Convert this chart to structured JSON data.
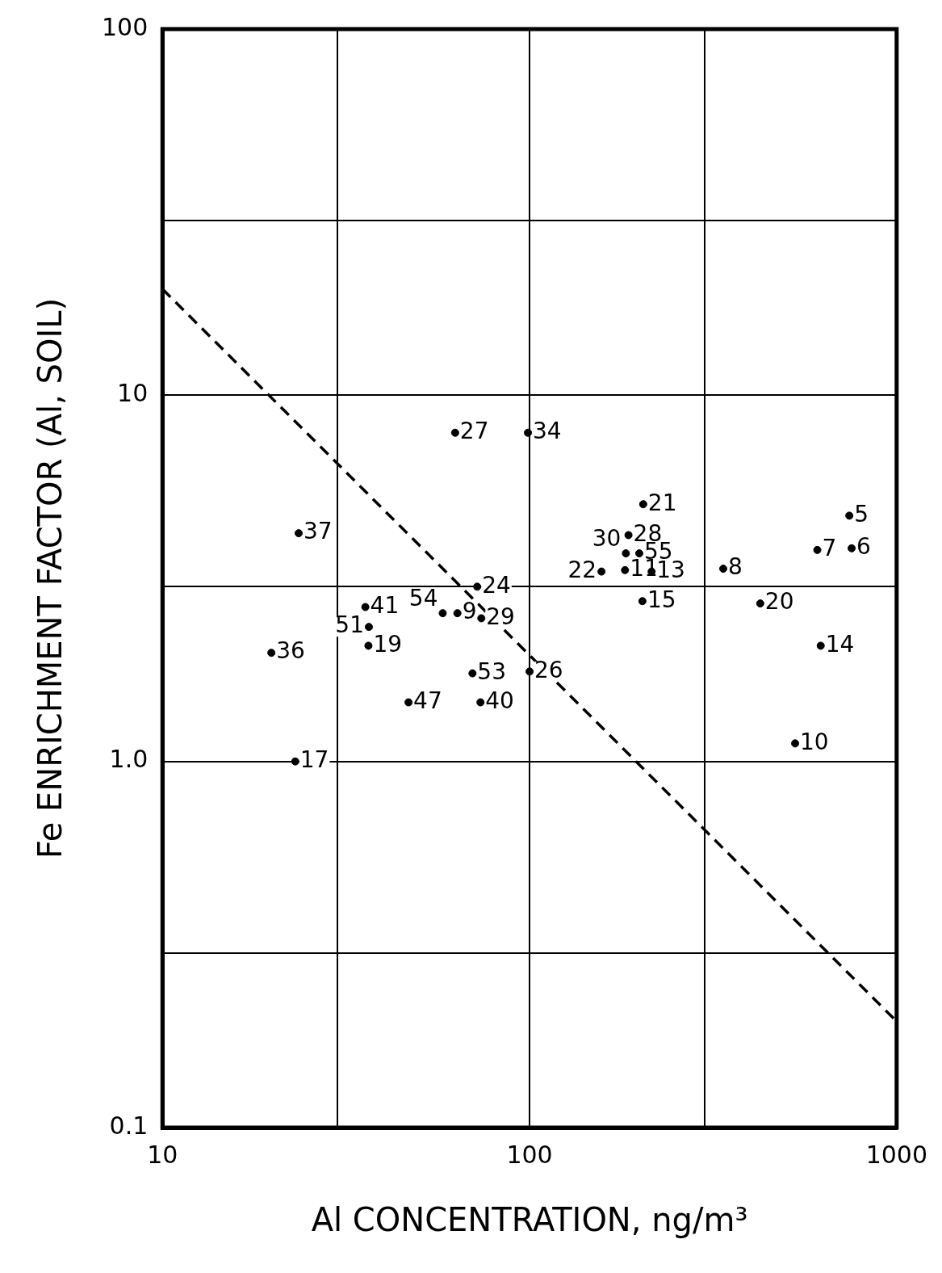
{
  "chart_data": {
    "type": "scatter",
    "xlabel": "Al CONCENTRATION, ng/m³",
    "ylabel": "Fe ENRICHMENT FACTOR (Al, SOIL)",
    "log": "xy",
    "grid": true,
    "legend": false,
    "marker": "circle",
    "xlim": [
      10,
      1000
    ],
    "ylim": [
      0.1,
      100
    ],
    "xticks": [
      10,
      {
        "value": 30,
        "label": null
      },
      100,
      {
        "value": 300,
        "label": null
      },
      1000
    ],
    "yticks": [
      {
        "value": 0.1,
        "label": "0.1"
      },
      {
        "value": 0.3,
        "label": null
      },
      {
        "value": 1,
        "label": "1.0"
      },
      {
        "value": 3,
        "label": null
      },
      10,
      {
        "value": 30,
        "label": null
      },
      100
    ],
    "series": [
      {
        "color": "#000000",
        "x": [
          62.7,
          99,
          23.5,
          19.8,
          23,
          35.7,
          36.5,
          36.4,
          46.8,
          58,
          63.6,
          72,
          73.9,
          69.9,
          73.5,
          100,
          186,
          204,
          183,
          199,
          157,
          182,
          215,
          203,
          337,
          425,
          743,
          608,
          754,
          621,
          529
        ],
        "values": [
          7.9,
          7.9,
          4.2,
          1.98,
          1.0,
          2.64,
          2.33,
          2.07,
          1.45,
          2.54,
          2.54,
          3.0,
          2.46,
          1.74,
          1.45,
          1.76,
          4.15,
          5.04,
          3.7,
          3.7,
          3.3,
          3.33,
          3.3,
          2.74,
          3.36,
          2.7,
          4.69,
          3.78,
          3.82,
          2.07,
          1.12
        ]
      },
      {
        "type": "line",
        "color": "#000000",
        "line_style": "dashed",
        "marker": "none",
        "x": [
          10,
          1000
        ],
        "values": [
          19.5,
          0.195
        ]
      }
    ],
    "annotations": [
      {
        "text": "27",
        "x": 62.7,
        "y": 7.9
      },
      {
        "text": "34",
        "x": 99,
        "y": 7.9
      },
      {
        "text": "37",
        "x": 23.5,
        "y": 4.2
      },
      {
        "text": "36",
        "x": 19.8,
        "y": 1.98
      },
      {
        "text": "17",
        "x": 23,
        "y": 1.0
      },
      {
        "text": "41",
        "x": 35.7,
        "y": 2.64
      },
      {
        "text": "51",
        "x": 36.5,
        "y": 2.33
      },
      {
        "text": "19",
        "x": 36.4,
        "y": 2.07
      },
      {
        "text": "47",
        "x": 46.8,
        "y": 1.45
      },
      {
        "text": "54",
        "x": 58,
        "y": 2.54
      },
      {
        "text": "9",
        "x": 63.6,
        "y": 2.54
      },
      {
        "text": "24",
        "x": 72,
        "y": 3.0
      },
      {
        "text": "29",
        "x": 73.9,
        "y": 2.46
      },
      {
        "text": "53",
        "x": 69.9,
        "y": 1.74
      },
      {
        "text": "40",
        "x": 73.5,
        "y": 1.45
      },
      {
        "text": "26",
        "x": 100,
        "y": 1.76
      },
      {
        "text": "28",
        "x": 186,
        "y": 4.15
      },
      {
        "text": "21",
        "x": 204,
        "y": 5.04
      },
      {
        "text": "30",
        "x": 183,
        "y": 3.7
      },
      {
        "text": "55",
        "x": 199,
        "y": 3.7
      },
      {
        "text": "22",
        "x": 157,
        "y": 3.3
      },
      {
        "text": "11",
        "x": 182,
        "y": 3.33
      },
      {
        "text": "13",
        "x": 215,
        "y": 3.3
      },
      {
        "text": "15",
        "x": 203,
        "y": 2.74
      },
      {
        "text": "8",
        "x": 337,
        "y": 3.36
      },
      {
        "text": "20",
        "x": 425,
        "y": 2.7
      },
      {
        "text": "5",
        "x": 743,
        "y": 4.69
      },
      {
        "text": "7",
        "x": 608,
        "y": 3.78
      },
      {
        "text": "6",
        "x": 754,
        "y": 3.82
      },
      {
        "text": "14",
        "x": 621,
        "y": 2.07
      },
      {
        "text": "10",
        "x": 529,
        "y": 1.12
      }
    ]
  }
}
